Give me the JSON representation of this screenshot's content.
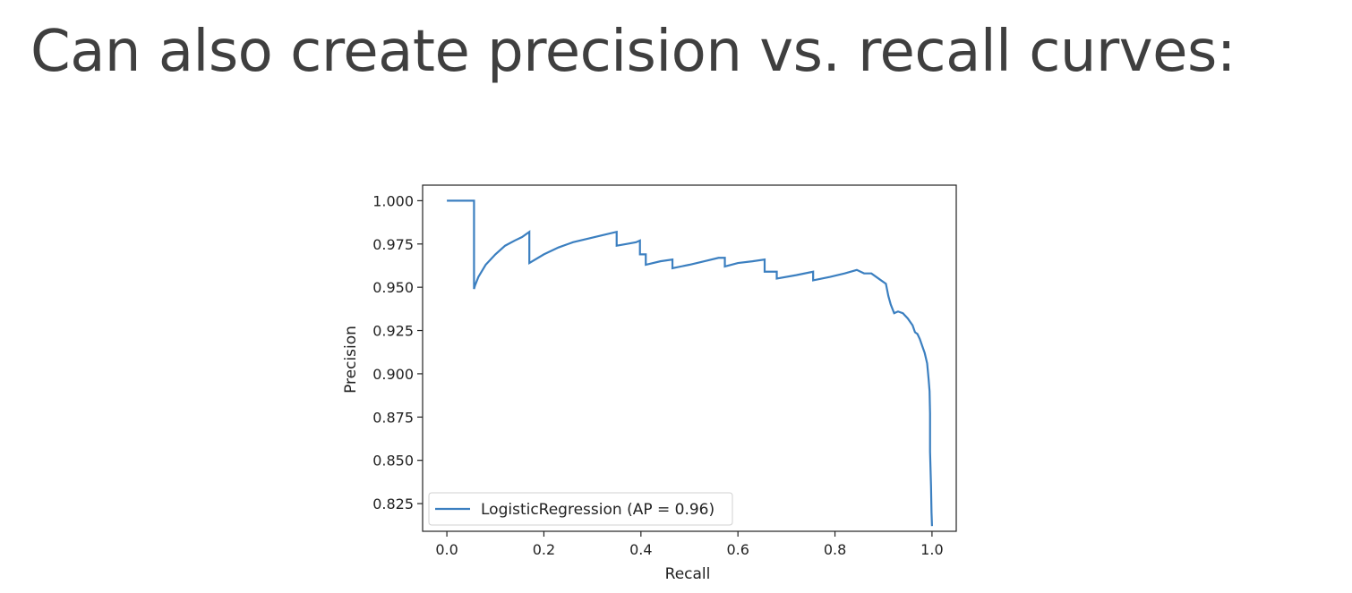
{
  "slide": {
    "title": "Can also create precision vs. recall curves:"
  },
  "chart_data": {
    "type": "line",
    "title": "",
    "xlabel": "Recall",
    "ylabel": "Precision",
    "xlim": [
      -0.05,
      1.05
    ],
    "ylim": [
      0.809,
      1.009
    ],
    "xticks": [
      0.0,
      0.2,
      0.4,
      0.6,
      0.8,
      1.0
    ],
    "xtick_labels": [
      "0.0",
      "0.2",
      "0.4",
      "0.6",
      "0.8",
      "1.0"
    ],
    "yticks": [
      0.825,
      0.85,
      0.875,
      0.9,
      0.925,
      0.95,
      0.975,
      1.0
    ],
    "ytick_labels": [
      "0.825",
      "0.850",
      "0.875",
      "0.900",
      "0.925",
      "0.950",
      "0.975",
      "1.000"
    ],
    "grid": false,
    "legend": {
      "position": "lower-left"
    },
    "colors": {
      "series": "#3b7fc0",
      "axes": "#222222",
      "text": "#222222"
    },
    "series": [
      {
        "name": "LogisticRegression (AP = 0.96)",
        "step": true,
        "x": [
          0.0,
          0.056,
          0.056,
          0.058,
          0.065,
          0.08,
          0.1,
          0.12,
          0.14,
          0.155,
          0.17,
          0.17,
          0.2,
          0.23,
          0.26,
          0.29,
          0.32,
          0.35,
          0.35,
          0.37,
          0.39,
          0.398,
          0.398,
          0.41,
          0.41,
          0.44,
          0.465,
          0.465,
          0.5,
          0.53,
          0.56,
          0.573,
          0.573,
          0.6,
          0.63,
          0.655,
          0.655,
          0.68,
          0.68,
          0.72,
          0.755,
          0.755,
          0.79,
          0.82,
          0.845,
          0.86,
          0.875,
          0.885,
          0.895,
          0.905,
          0.91,
          0.915,
          0.922,
          0.93,
          0.94,
          0.95,
          0.955,
          0.96,
          0.965,
          0.97,
          0.975,
          0.98,
          0.985,
          0.99,
          0.993,
          0.995,
          0.996,
          0.996,
          0.998,
          0.999,
          1.0
        ],
        "y": [
          1.0,
          1.0,
          0.949,
          0.951,
          0.956,
          0.963,
          0.969,
          0.974,
          0.977,
          0.979,
          0.982,
          0.964,
          0.969,
          0.973,
          0.976,
          0.978,
          0.98,
          0.982,
          0.974,
          0.975,
          0.976,
          0.977,
          0.969,
          0.969,
          0.963,
          0.965,
          0.966,
          0.961,
          0.963,
          0.965,
          0.967,
          0.967,
          0.962,
          0.964,
          0.965,
          0.966,
          0.959,
          0.959,
          0.955,
          0.957,
          0.959,
          0.954,
          0.956,
          0.958,
          0.96,
          0.958,
          0.958,
          0.956,
          0.954,
          0.952,
          0.945,
          0.94,
          0.935,
          0.936,
          0.935,
          0.932,
          0.93,
          0.928,
          0.924,
          0.923,
          0.92,
          0.916,
          0.912,
          0.906,
          0.897,
          0.89,
          0.877,
          0.855,
          0.835,
          0.82,
          0.812
        ]
      }
    ]
  }
}
